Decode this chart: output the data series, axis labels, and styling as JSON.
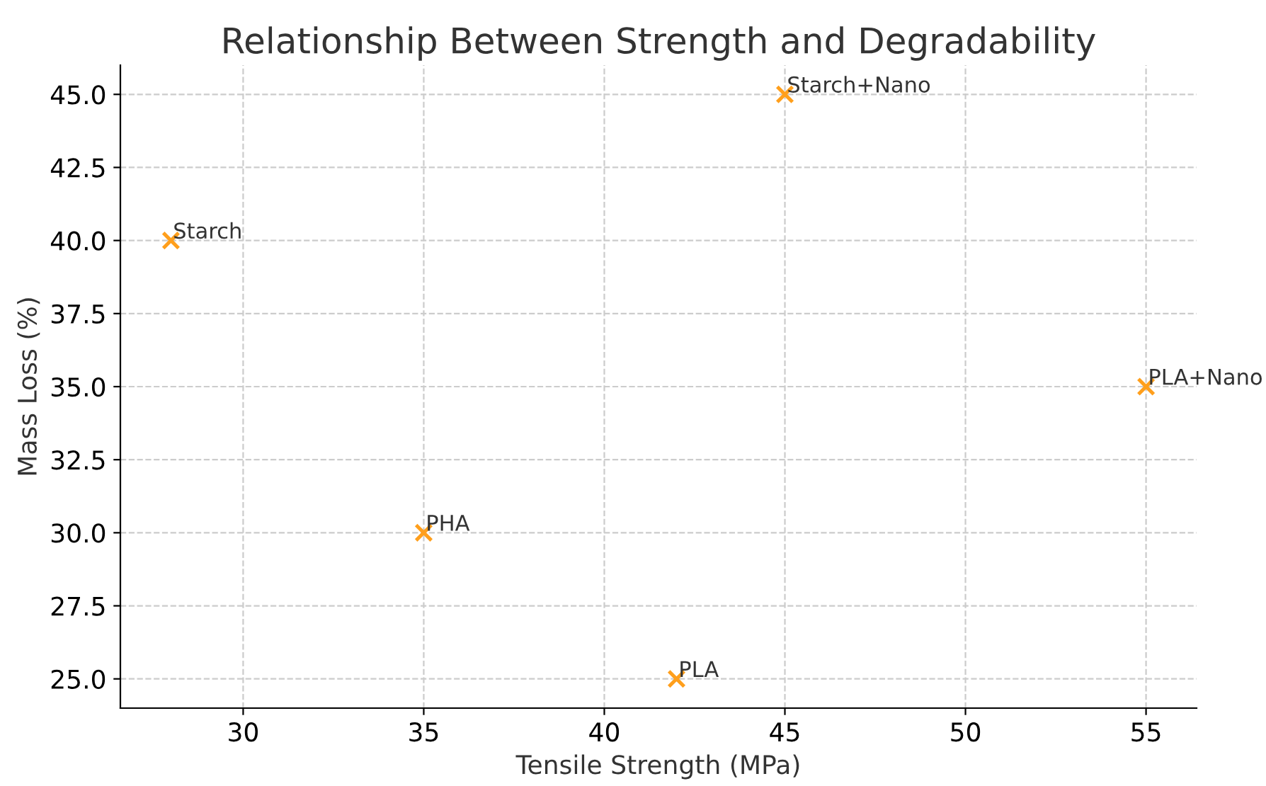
{
  "chart_data": {
    "type": "scatter",
    "title": "Relationship Between Strength and Degradability",
    "xlabel": "Tensile Strength (MPa)",
    "ylabel": "Mass Loss (%)",
    "series": [
      {
        "color": "#ff9f1c",
        "x": [
          28,
          35,
          42,
          45,
          55
        ],
        "values": [
          40,
          30,
          25,
          45,
          35
        ]
      }
    ],
    "marker": "cross",
    "annotations": [
      {
        "text": "Starch",
        "x": 28,
        "y": 40
      },
      {
        "text": "PHA",
        "x": 35,
        "y": 30
      },
      {
        "text": "PLA",
        "x": 42,
        "y": 25
      },
      {
        "text": "Starch+Nano",
        "x": 45,
        "y": 45
      },
      {
        "text": "PLA+Nano",
        "x": 55,
        "y": 35
      }
    ],
    "xlim": [
      26.6,
      56.4
    ],
    "ylim": [
      24.0,
      46.0
    ],
    "xticks": [
      30,
      35,
      40,
      45,
      50,
      55
    ],
    "yticks": [
      {
        "value": 25,
        "label": "25.0"
      },
      {
        "value": 27.5,
        "label": "27.5"
      },
      {
        "value": 30,
        "label": "30.0"
      },
      {
        "value": 32.5,
        "label": "32.5"
      },
      {
        "value": 35,
        "label": "35.0"
      },
      {
        "value": 37.5,
        "label": "37.5"
      },
      {
        "value": 40,
        "label": "40.0"
      },
      {
        "value": 42.5,
        "label": "42.5"
      },
      {
        "value": 45,
        "label": "45.0"
      }
    ],
    "grid": true
  }
}
